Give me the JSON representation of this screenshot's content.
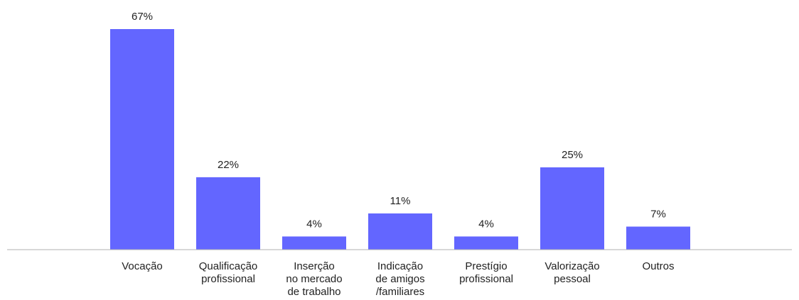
{
  "chart_data": {
    "type": "bar",
    "categories": [
      [
        "Vocação"
      ],
      [
        "Qualificação",
        "profissional"
      ],
      [
        "Inserção",
        "no mercado",
        "de trabalho"
      ],
      [
        "Indicação",
        "de amigos",
        "/familiares"
      ],
      [
        "Prestígio",
        "profissional"
      ],
      [
        "Valorização",
        "pessoal"
      ],
      [
        "Outros"
      ]
    ],
    "values": [
      67,
      22,
      4,
      11,
      4,
      25,
      7
    ],
    "value_labels": [
      "67%",
      "22%",
      "4%",
      "11%",
      "4%",
      "25%",
      "7%"
    ],
    "unit": "%",
    "title": "",
    "xlabel": "",
    "ylabel": "",
    "grid": false,
    "legend": "none",
    "colors": {
      "bar": "#6366ff",
      "axis": "#b0b0b0",
      "text": "#222222"
    }
  }
}
